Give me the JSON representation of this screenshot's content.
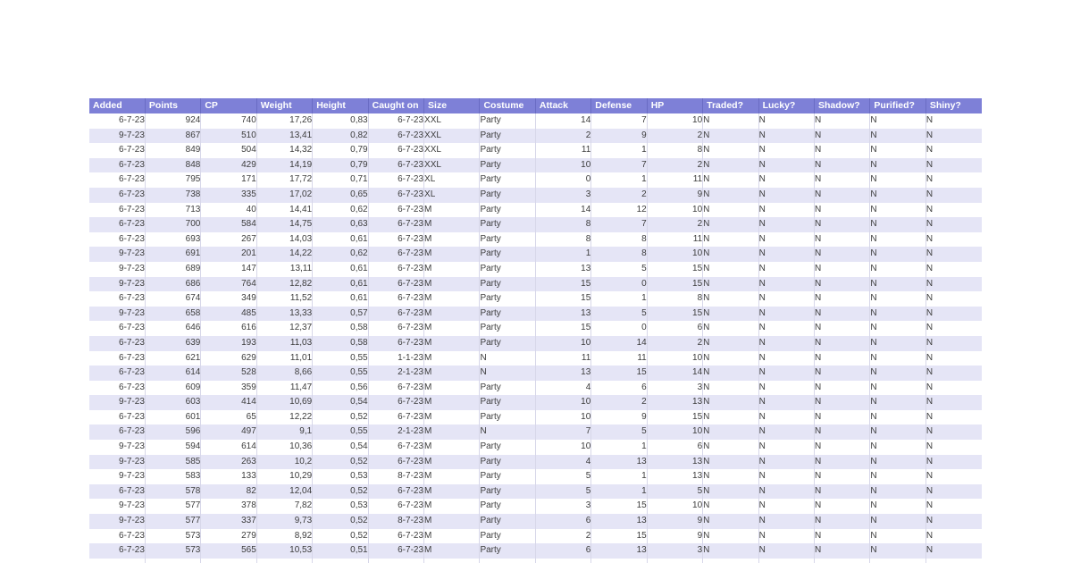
{
  "colors": {
    "header_bg": "#7e80d7",
    "header_text": "#ffffff",
    "header_divider": "#6a6cc4",
    "row_stripe": "#e5e5f6",
    "row_plain": "#ffffff",
    "grid_line": "#d7d7e9",
    "cell_text": "#3c3c3c"
  },
  "table": {
    "columns": [
      "Added",
      "Points",
      "CP",
      "Weight",
      "Height",
      "Caught on",
      "Size",
      "Costume",
      "Attack",
      "Defense",
      "HP",
      "Traded?",
      "Lucky?",
      "Shadow?",
      "Purified?",
      "Shiny?"
    ],
    "rows": [
      [
        "6-7-23",
        "924",
        "740",
        "17,26",
        "0,83",
        "6-7-23",
        "XXL",
        "Party",
        "14",
        "7",
        "10",
        "N",
        "N",
        "N",
        "N",
        "N"
      ],
      [
        "9-7-23",
        "867",
        "510",
        "13,41",
        "0,82",
        "6-7-23",
        "XXL",
        "Party",
        "2",
        "9",
        "2",
        "N",
        "N",
        "N",
        "N",
        "N"
      ],
      [
        "6-7-23",
        "849",
        "504",
        "14,32",
        "0,79",
        "6-7-23",
        "XXL",
        "Party",
        "11",
        "1",
        "8",
        "N",
        "N",
        "N",
        "N",
        "N"
      ],
      [
        "6-7-23",
        "848",
        "429",
        "14,19",
        "0,79",
        "6-7-23",
        "XXL",
        "Party",
        "10",
        "7",
        "2",
        "N",
        "N",
        "N",
        "N",
        "N"
      ],
      [
        "6-7-23",
        "795",
        "171",
        "17,72",
        "0,71",
        "6-7-23",
        "XL",
        "Party",
        "0",
        "1",
        "11",
        "N",
        "N",
        "N",
        "N",
        "N"
      ],
      [
        "6-7-23",
        "738",
        "335",
        "17,02",
        "0,65",
        "6-7-23",
        "XL",
        "Party",
        "3",
        "2",
        "9",
        "N",
        "N",
        "N",
        "N",
        "N"
      ],
      [
        "6-7-23",
        "713",
        "40",
        "14,41",
        "0,62",
        "6-7-23",
        "M",
        "Party",
        "14",
        "12",
        "10",
        "N",
        "N",
        "N",
        "N",
        "N"
      ],
      [
        "6-7-23",
        "700",
        "584",
        "14,75",
        "0,63",
        "6-7-23",
        "M",
        "Party",
        "8",
        "7",
        "2",
        "N",
        "N",
        "N",
        "N",
        "N"
      ],
      [
        "6-7-23",
        "693",
        "267",
        "14,03",
        "0,61",
        "6-7-23",
        "M",
        "Party",
        "8",
        "8",
        "11",
        "N",
        "N",
        "N",
        "N",
        "N"
      ],
      [
        "9-7-23",
        "691",
        "201",
        "14,22",
        "0,62",
        "6-7-23",
        "M",
        "Party",
        "1",
        "8",
        "10",
        "N",
        "N",
        "N",
        "N",
        "N"
      ],
      [
        "9-7-23",
        "689",
        "147",
        "13,11",
        "0,61",
        "6-7-23",
        "M",
        "Party",
        "13",
        "5",
        "15",
        "N",
        "N",
        "N",
        "N",
        "N"
      ],
      [
        "9-7-23",
        "686",
        "764",
        "12,82",
        "0,61",
        "6-7-23",
        "M",
        "Party",
        "15",
        "0",
        "15",
        "N",
        "N",
        "N",
        "N",
        "N"
      ],
      [
        "6-7-23",
        "674",
        "349",
        "11,52",
        "0,61",
        "6-7-23",
        "M",
        "Party",
        "15",
        "1",
        "8",
        "N",
        "N",
        "N",
        "N",
        "N"
      ],
      [
        "9-7-23",
        "658",
        "485",
        "13,33",
        "0,57",
        "6-7-23",
        "M",
        "Party",
        "13",
        "5",
        "15",
        "N",
        "N",
        "N",
        "N",
        "N"
      ],
      [
        "6-7-23",
        "646",
        "616",
        "12,37",
        "0,58",
        "6-7-23",
        "M",
        "Party",
        "15",
        "0",
        "6",
        "N",
        "N",
        "N",
        "N",
        "N"
      ],
      [
        "6-7-23",
        "639",
        "193",
        "11,03",
        "0,58",
        "6-7-23",
        "M",
        "Party",
        "10",
        "14",
        "2",
        "N",
        "N",
        "N",
        "N",
        "N"
      ],
      [
        "6-7-23",
        "621",
        "629",
        "11,01",
        "0,55",
        "1-1-23",
        "M",
        "N",
        "11",
        "11",
        "10",
        "N",
        "N",
        "N",
        "N",
        "N"
      ],
      [
        "6-7-23",
        "614",
        "528",
        "8,66",
        "0,55",
        "2-1-23",
        "M",
        "N",
        "13",
        "15",
        "14",
        "N",
        "N",
        "N",
        "N",
        "N"
      ],
      [
        "6-7-23",
        "609",
        "359",
        "11,47",
        "0,56",
        "6-7-23",
        "M",
        "Party",
        "4",
        "6",
        "3",
        "N",
        "N",
        "N",
        "N",
        "N"
      ],
      [
        "9-7-23",
        "603",
        "414",
        "10,69",
        "0,54",
        "6-7-23",
        "M",
        "Party",
        "10",
        "2",
        "13",
        "N",
        "N",
        "N",
        "N",
        "N"
      ],
      [
        "6-7-23",
        "601",
        "65",
        "12,22",
        "0,52",
        "6-7-23",
        "M",
        "Party",
        "10",
        "9",
        "15",
        "N",
        "N",
        "N",
        "N",
        "N"
      ],
      [
        "6-7-23",
        "596",
        "497",
        "9,1",
        "0,55",
        "2-1-23",
        "M",
        "N",
        "7",
        "5",
        "10",
        "N",
        "N",
        "N",
        "N",
        "N"
      ],
      [
        "9-7-23",
        "594",
        "614",
        "10,36",
        "0,54",
        "6-7-23",
        "M",
        "Party",
        "10",
        "1",
        "6",
        "N",
        "N",
        "N",
        "N",
        "N"
      ],
      [
        "9-7-23",
        "585",
        "263",
        "10,2",
        "0,52",
        "6-7-23",
        "M",
        "Party",
        "4",
        "13",
        "13",
        "N",
        "N",
        "N",
        "N",
        "N"
      ],
      [
        "9-7-23",
        "583",
        "133",
        "10,29",
        "0,53",
        "8-7-23",
        "M",
        "Party",
        "5",
        "1",
        "13",
        "N",
        "N",
        "N",
        "N",
        "N"
      ],
      [
        "6-7-23",
        "578",
        "82",
        "12,04",
        "0,52",
        "6-7-23",
        "M",
        "Party",
        "5",
        "1",
        "5",
        "N",
        "N",
        "N",
        "N",
        "N"
      ],
      [
        "9-7-23",
        "577",
        "378",
        "7,82",
        "0,53",
        "6-7-23",
        "M",
        "Party",
        "3",
        "15",
        "10",
        "N",
        "N",
        "N",
        "N",
        "N"
      ],
      [
        "9-7-23",
        "577",
        "337",
        "9,73",
        "0,52",
        "8-7-23",
        "M",
        "Party",
        "6",
        "13",
        "9",
        "N",
        "N",
        "N",
        "N",
        "N"
      ],
      [
        "6-7-23",
        "573",
        "279",
        "8,92",
        "0,52",
        "6-7-23",
        "M",
        "Party",
        "2",
        "15",
        "9",
        "N",
        "N",
        "N",
        "N",
        "N"
      ],
      [
        "6-7-23",
        "573",
        "565",
        "10,53",
        "0,51",
        "6-7-23",
        "M",
        "Party",
        "6",
        "13",
        "3",
        "N",
        "N",
        "N",
        "N",
        "N"
      ]
    ]
  }
}
